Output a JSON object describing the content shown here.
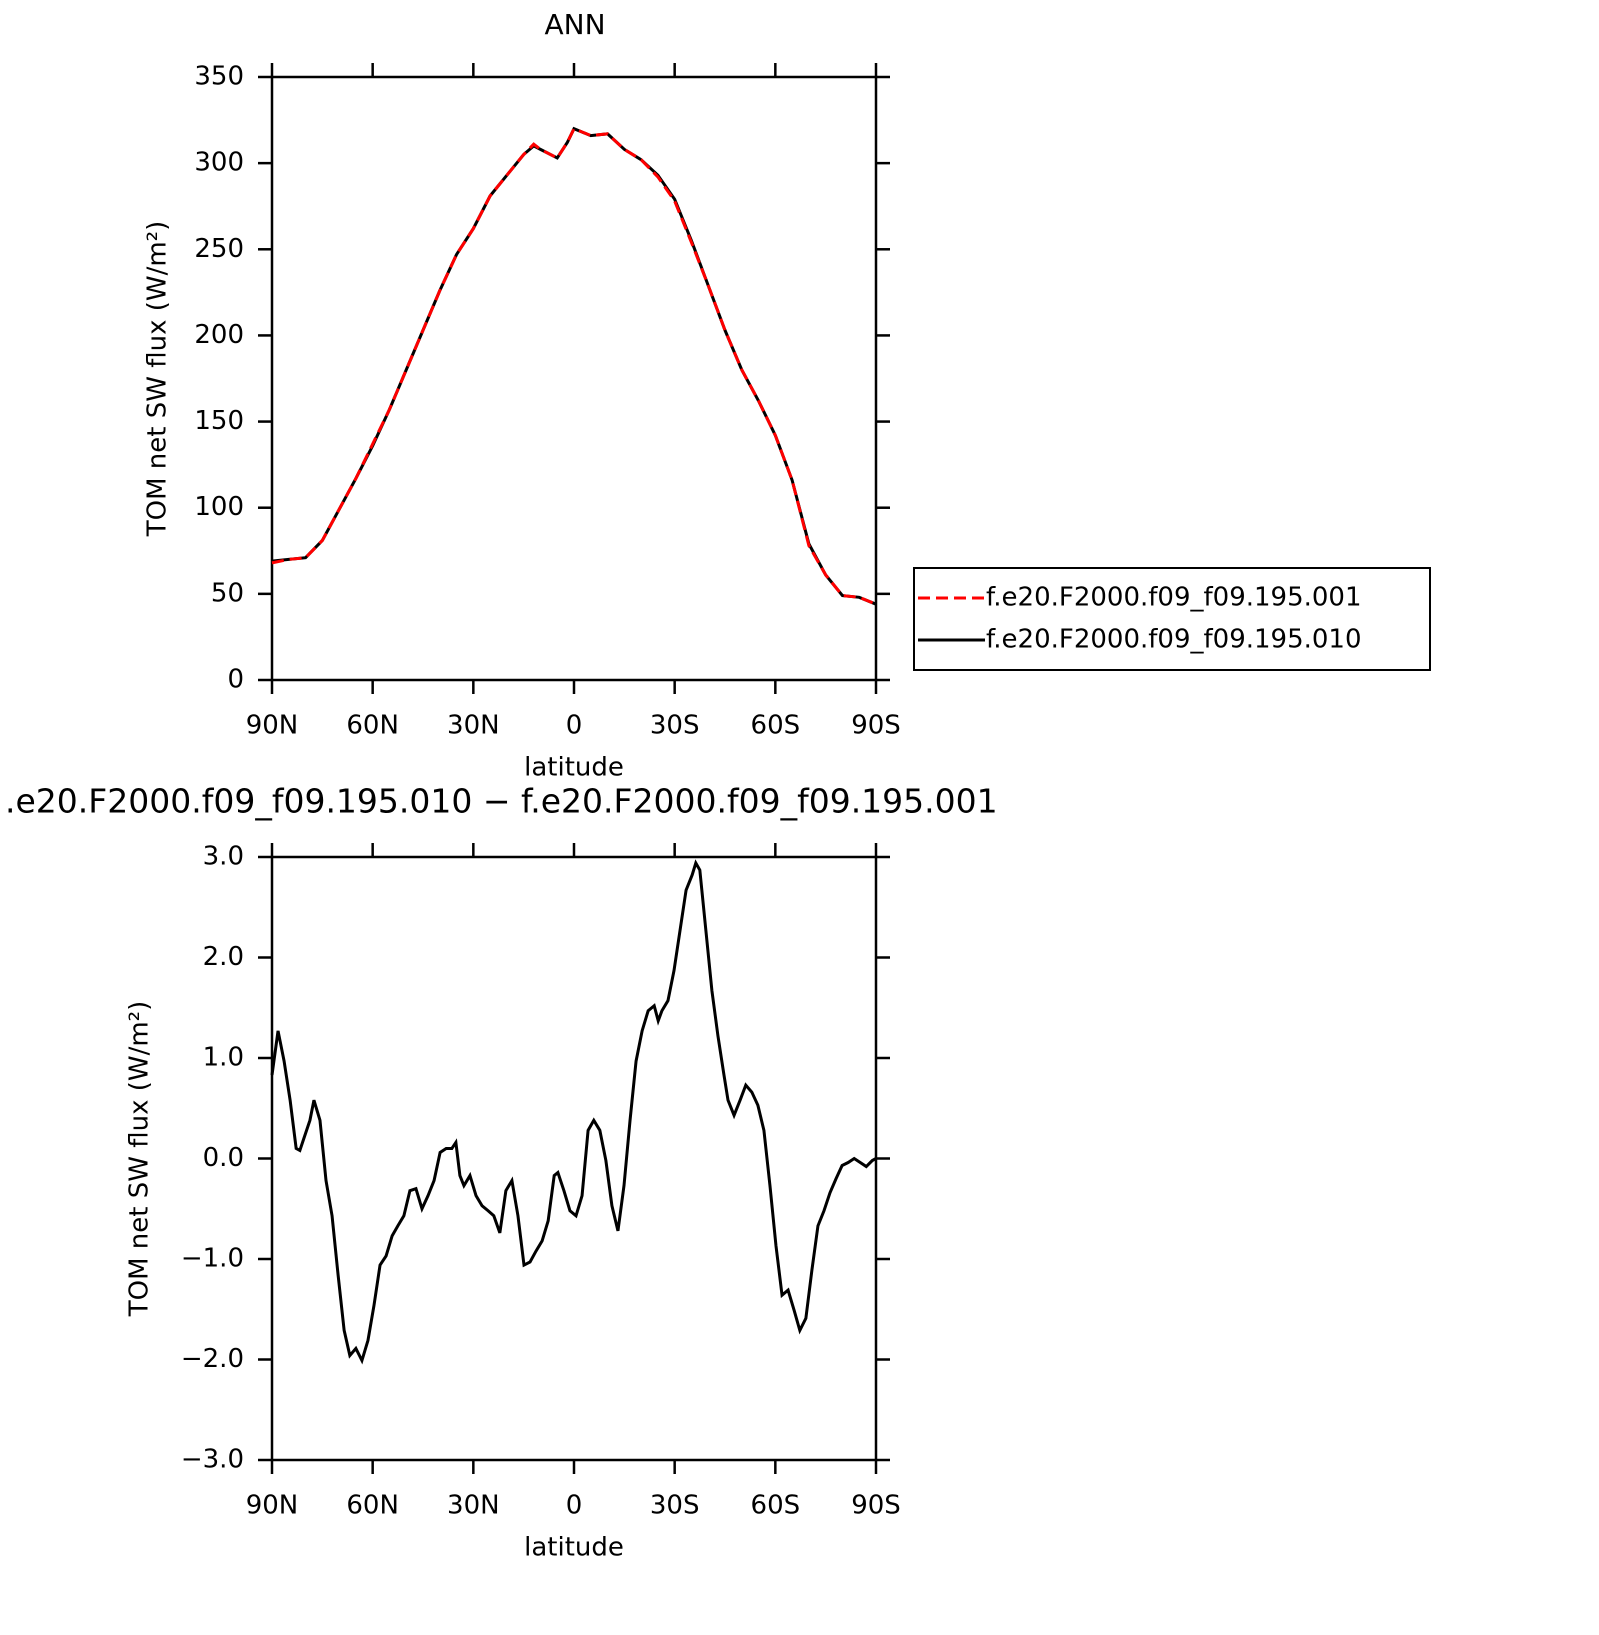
{
  "chart_data": [
    {
      "type": "line",
      "title": "ANN",
      "xlabel": "latitude",
      "ylabel": "TOM net SW flux (W/m²)",
      "x": [
        90,
        85,
        80,
        75,
        70,
        65,
        60,
        55,
        50,
        45,
        40,
        35,
        30,
        25,
        20,
        15,
        12,
        10,
        5,
        2,
        0,
        -5,
        -10,
        -15,
        -20,
        -25,
        -30,
        -35,
        -40,
        -45,
        -50,
        -55,
        -60,
        -65,
        -70,
        -75,
        -80,
        -85,
        -90
      ],
      "series": [
        {
          "name": "f.e20.F2000.f09_f09.195.001",
          "color": "#ff0000",
          "style": "dashed",
          "values": [
            68,
            70,
            71,
            81,
            99,
            117,
            137,
            157,
            180,
            203,
            226,
            247,
            262,
            281,
            293,
            305,
            311,
            308,
            303,
            312,
            320,
            316,
            317,
            308,
            302,
            292,
            278,
            254,
            229,
            203,
            180,
            162,
            142,
            116,
            78,
            61,
            49,
            48,
            44
          ]
        },
        {
          "name": "f.e20.F2000.f09_f09.195.010",
          "color": "#000000",
          "style": "solid",
          "values": [
            69,
            70,
            71,
            81,
            99,
            117,
            136,
            157,
            180,
            203,
            226,
            247,
            262,
            281,
            293,
            305,
            310,
            308,
            303,
            312,
            320,
            316,
            317,
            308,
            302,
            293,
            279,
            255,
            229,
            203,
            180,
            162,
            142,
            116,
            79,
            61,
            49,
            48,
            44
          ]
        }
      ],
      "xlim": [
        90,
        -90
      ],
      "ylim": [
        0,
        350
      ],
      "xticks": [
        {
          "value": 90,
          "label": "90N"
        },
        {
          "value": 60,
          "label": "60N"
        },
        {
          "value": 30,
          "label": "30N"
        },
        0,
        {
          "value": -30,
          "label": "30S"
        },
        {
          "value": -60,
          "label": "60S"
        },
        {
          "value": -90,
          "label": "90S"
        }
      ],
      "yticks": [
        0,
        50,
        100,
        150,
        200,
        250,
        300,
        350
      ],
      "legend": "right"
    },
    {
      "type": "line",
      "title": ".e20.F2000.f09_f09.195.010 − f.e20.F2000.f09_f09.195.001",
      "xlabel": "latitude",
      "ylabel": "TOM net SW flux (W/m²)",
      "x": [
        90,
        88.2,
        86.4,
        84.6,
        82.8,
        81.7,
        80.5,
        78.7,
        77.5,
        75.7,
        73.9,
        72.1,
        70.3,
        68.5,
        66.8,
        65.0,
        63.2,
        61.4,
        59.6,
        57.8,
        56.0,
        54.2,
        52.5,
        50.7,
        48.9,
        47.1,
        45.3,
        43.5,
        41.7,
        39.9,
        38.1,
        36.4,
        35.2,
        34.0,
        32.8,
        31.0,
        29.2,
        27.4,
        25.6,
        23.9,
        22.1,
        20.3,
        18.5,
        16.7,
        14.9,
        13.1,
        11.3,
        9.5,
        7.7,
        5.9,
        4.8,
        3.0,
        1.2,
        -0.6,
        -2.4,
        -4.2,
        -5.9,
        -7.7,
        -9.5,
        -11.3,
        -13.1,
        -14.9,
        -16.7,
        -18.5,
        -20.3,
        -22.1,
        -23.9,
        -25.1,
        -26.2,
        -28.0,
        -29.8,
        -31.6,
        -33.4,
        -35.2,
        -36.3,
        -37.5,
        -39.3,
        -41.1,
        -42.9,
        -44.7,
        -45.9,
        -47.7,
        -49.5,
        -51.2,
        -53.0,
        -54.8,
        -56.6,
        -58.4,
        -60.2,
        -62.0,
        -63.8,
        -65.6,
        -67.3,
        -69.1,
        -70.9,
        -72.7,
        -74.5,
        -76.3,
        -78.1,
        -79.9,
        -81.7,
        -83.5,
        -85.3,
        -87.1,
        -88.9,
        -90
      ],
      "series": [
        {
          "color": "#000000",
          "style": "solid",
          "values": [
            0.83,
            1.27,
            0.97,
            0.58,
            0.1,
            0.08,
            0.2,
            0.38,
            0.58,
            0.38,
            -0.22,
            -0.57,
            -1.16,
            -1.71,
            -1.96,
            -1.89,
            -2.01,
            -1.81,
            -1.46,
            -1.06,
            -0.97,
            -0.77,
            -0.67,
            -0.57,
            -0.32,
            -0.3,
            -0.5,
            -0.37,
            -0.22,
            0.06,
            0.1,
            0.1,
            0.16,
            -0.17,
            -0.27,
            -0.17,
            -0.37,
            -0.47,
            -0.52,
            -0.57,
            -0.74,
            -0.32,
            -0.22,
            -0.57,
            -1.06,
            -1.03,
            -0.92,
            -0.82,
            -0.62,
            -0.17,
            -0.14,
            -0.32,
            -0.52,
            -0.57,
            -0.37,
            0.28,
            0.38,
            0.28,
            -0.02,
            -0.47,
            -0.72,
            -0.27,
            0.38,
            0.97,
            1.27,
            1.47,
            1.52,
            1.37,
            1.47,
            1.57,
            1.87,
            2.27,
            2.67,
            2.82,
            2.94,
            2.87,
            2.27,
            1.67,
            1.22,
            0.83,
            0.58,
            0.43,
            0.58,
            0.73,
            0.66,
            0.53,
            0.28,
            -0.27,
            -0.87,
            -1.36,
            -1.31,
            -1.51,
            -1.71,
            -1.59,
            -1.11,
            -0.67,
            -0.52,
            -0.34,
            -0.2,
            -0.07,
            -0.04,
            0.0,
            -0.04,
            -0.08,
            -0.02,
            0
          ]
        }
      ],
      "xlim": [
        90,
        -90
      ],
      "ylim": [
        -3,
        3
      ],
      "xticks": [
        {
          "value": 90,
          "label": "90N"
        },
        {
          "value": 60,
          "label": "60N"
        },
        {
          "value": 30,
          "label": "30N"
        },
        0,
        {
          "value": -30,
          "label": "30S"
        },
        {
          "value": -60,
          "label": "60S"
        },
        {
          "value": -90,
          "label": "90S"
        }
      ],
      "yticks": [
        {
          "value": 3,
          "label": "3.0"
        },
        {
          "value": 2,
          "label": "2.0"
        },
        {
          "value": 1,
          "label": "1.0"
        },
        {
          "value": 0,
          "label": "0.0"
        },
        {
          "value": -1,
          "label": "−1.0"
        },
        {
          "value": -2,
          "label": "−2.0"
        },
        {
          "value": -3,
          "label": "−3.0"
        }
      ]
    }
  ]
}
